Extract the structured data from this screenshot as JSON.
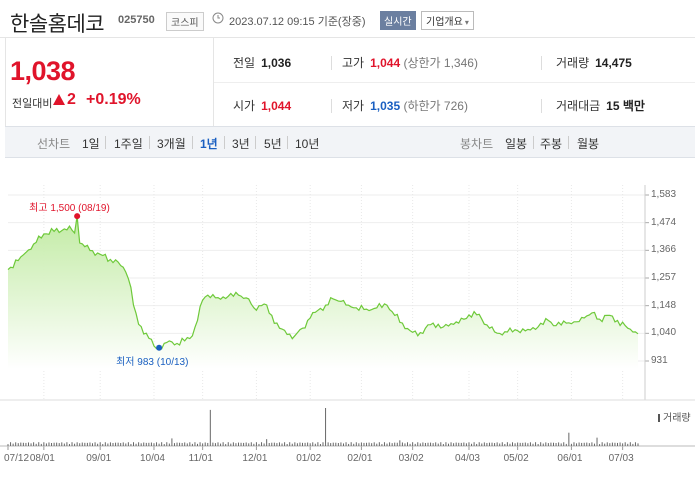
{
  "header": {
    "stock_name": "한솔홈데코",
    "stock_code": "025750",
    "market": "코스피",
    "timestamp": "2023.07.12 09:15  기준(장중)",
    "realtime_label": "실시간",
    "company_info_label": "기업개요"
  },
  "summary": {
    "price": "1,038",
    "change_label": "전일대비",
    "change": "2",
    "change_pct": "+0.19%",
    "prev_close": {
      "label": "전일",
      "value": "1,036"
    },
    "open": {
      "label": "시가",
      "value": "1,044"
    },
    "high": {
      "label": "고가",
      "value": "1,044",
      "sub": "(상한가 1,346)"
    },
    "low": {
      "label": "저가",
      "value": "1,035",
      "sub": "(하한가 726)"
    },
    "volume": {
      "label": "거래량",
      "value": "14,475"
    },
    "amount": {
      "label": "거래대금",
      "value": "15 백만"
    }
  },
  "tabs": {
    "line_label": "선차트",
    "periods": [
      "1일",
      "1주일",
      "3개월",
      "1년",
      "3년",
      "5년",
      "10년"
    ],
    "selected_period": "1년",
    "candle_label": "봉차트",
    "candles": [
      "일봉",
      "주봉",
      "월봉"
    ]
  },
  "colors": {
    "up": "#e0142b",
    "down": "#1a5fc1",
    "line": "#6ec93a",
    "area_top": "#bfeaa0"
  },
  "chart_data": {
    "type": "area",
    "y_ticks": [
      "1,583",
      "1,474",
      "1,366",
      "1,257",
      "1,148",
      "1,040",
      "931"
    ],
    "ylim": [
      931,
      1583
    ],
    "x_ticks": [
      "07/12",
      "08/01",
      "09/01",
      "10/04",
      "11/01",
      "12/01",
      "01/02",
      "02/01",
      "03/02",
      "04/03",
      "05/02",
      "06/01",
      "07/03"
    ],
    "x_tick_index": [
      0,
      14,
      36,
      57,
      76,
      97,
      118,
      138,
      158,
      180,
      199,
      220,
      240
    ],
    "n_points": 247,
    "values_keyframes": [
      [
        0,
        1290
      ],
      [
        5,
        1340
      ],
      [
        10,
        1390
      ],
      [
        14,
        1430
      ],
      [
        18,
        1440
      ],
      [
        22,
        1450
      ],
      [
        25,
        1445
      ],
      [
        28,
        1395
      ],
      [
        32,
        1365
      ],
      [
        36,
        1350
      ],
      [
        40,
        1330
      ],
      [
        43,
        1320
      ],
      [
        46,
        1280
      ],
      [
        48,
        1220
      ],
      [
        49,
        1150
      ],
      [
        51,
        1075
      ],
      [
        54,
        1040
      ],
      [
        57,
        990
      ],
      [
        59,
        983
      ],
      [
        61,
        1000
      ],
      [
        63,
        1010
      ],
      [
        66,
        1000
      ],
      [
        69,
        1010
      ],
      [
        72,
        1030
      ],
      [
        74,
        1090
      ],
      [
        76,
        1170
      ],
      [
        78,
        1190
      ],
      [
        82,
        1180
      ],
      [
        86,
        1185
      ],
      [
        90,
        1190
      ],
      [
        94,
        1175
      ],
      [
        96,
        1140
      ],
      [
        100,
        1155
      ],
      [
        103,
        1110
      ],
      [
        106,
        1060
      ],
      [
        109,
        1035
      ],
      [
        112,
        1030
      ],
      [
        115,
        1060
      ],
      [
        118,
        1100
      ],
      [
        121,
        1130
      ],
      [
        124,
        1150
      ],
      [
        127,
        1175
      ],
      [
        130,
        1165
      ],
      [
        133,
        1150
      ],
      [
        136,
        1140
      ],
      [
        140,
        1135
      ],
      [
        144,
        1140
      ],
      [
        148,
        1150
      ],
      [
        151,
        1110
      ],
      [
        154,
        1080
      ],
      [
        157,
        1050
      ],
      [
        160,
        1030
      ],
      [
        163,
        1060
      ],
      [
        166,
        1080
      ],
      [
        170,
        1065
      ],
      [
        174,
        1075
      ],
      [
        178,
        1095
      ],
      [
        182,
        1125
      ],
      [
        185,
        1095
      ],
      [
        188,
        1060
      ],
      [
        191,
        1040
      ],
      [
        195,
        1045
      ],
      [
        199,
        1050
      ],
      [
        203,
        1055
      ],
      [
        207,
        1065
      ],
      [
        211,
        1090
      ],
      [
        214,
        1070
      ],
      [
        218,
        1080
      ],
      [
        222,
        1085
      ],
      [
        225,
        1100
      ],
      [
        228,
        1120
      ],
      [
        231,
        1095
      ],
      [
        234,
        1110
      ],
      [
        238,
        1090
      ],
      [
        242,
        1060
      ],
      [
        244,
        1045
      ],
      [
        246,
        1038
      ]
    ],
    "high": {
      "label": "최고 1,500 (08/19)",
      "value": 1500,
      "index": 27
    },
    "low": {
      "label": "최저  983 (10/13)",
      "value": 983,
      "index": 59
    },
    "volume_label": "거래량",
    "volume_spikes": [
      [
        79,
        0.95
      ],
      [
        124,
        1.0
      ],
      [
        219,
        0.35
      ],
      [
        230,
        0.22
      ],
      [
        64,
        0.2
      ],
      [
        101,
        0.18
      ],
      [
        153,
        0.15
      ]
    ]
  }
}
